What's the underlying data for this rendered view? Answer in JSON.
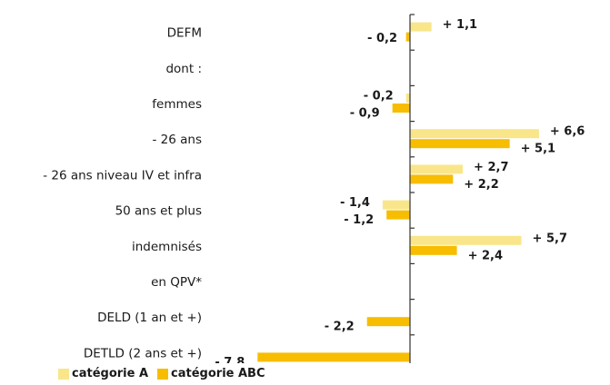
{
  "chart_data": {
    "type": "bar",
    "orientation": "horizontal",
    "categories": [
      "DEFM",
      "dont :",
      "femmes",
      "- 26 ans",
      "- 26 ans niveau IV et infra",
      "50 ans et plus",
      "indemnisés",
      "en QPV*",
      "DELD (1 an et +)",
      "DETLD (2 ans et +)"
    ],
    "series": [
      {
        "name": "catégorie A",
        "color": "#f9e68a",
        "values": [
          1.1,
          null,
          -0.2,
          6.6,
          2.7,
          -1.4,
          5.7,
          null,
          null,
          null
        ],
        "labels": [
          "+ 1,1",
          "",
          "- 0,2",
          "+ 6,6",
          "+ 2,7",
          "- 1,4",
          "+ 5,7",
          "",
          "",
          ""
        ]
      },
      {
        "name": "catégorie ABC",
        "color": "#f7bd00",
        "values": [
          -0.2,
          null,
          -0.9,
          5.1,
          2.2,
          -1.2,
          2.4,
          null,
          -2.2,
          -7.8
        ],
        "labels": [
          "- 0,2",
          "",
          "- 0,9",
          "+ 5,1",
          "+ 2,2",
          "- 1,2",
          "+ 2,4",
          "",
          "- 2,2",
          "- 7,8"
        ]
      }
    ],
    "xlim": [
      -8,
      7.5
    ],
    "grid": false,
    "legend_position": "bottom-left"
  }
}
